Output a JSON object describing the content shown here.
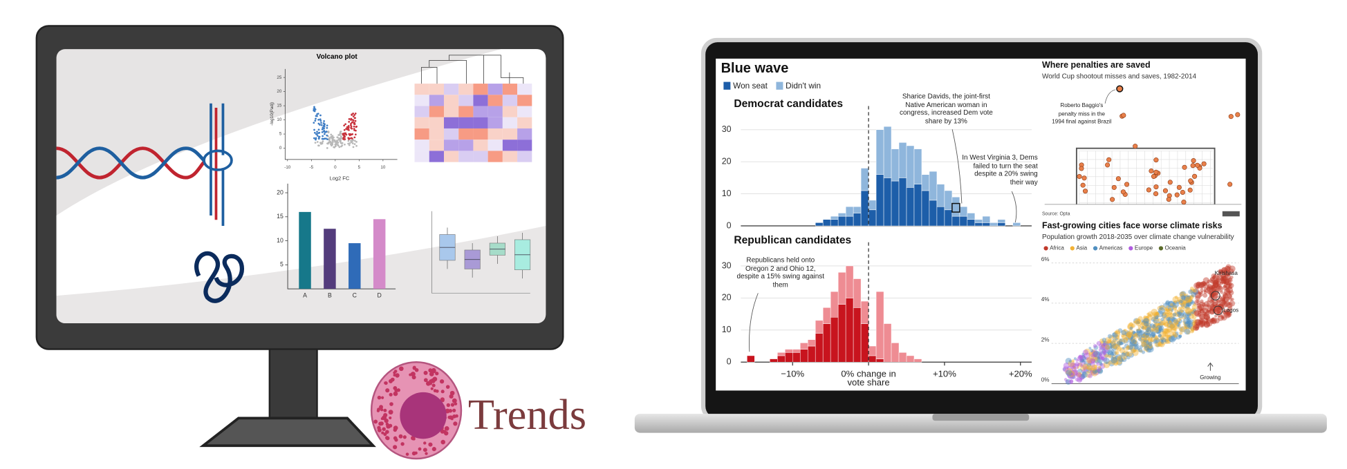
{
  "monitor": {
    "volcano": {
      "title": "Volcano plot",
      "x_label": "Log2 FC",
      "y_label": "-log10(Padj)",
      "xlim": [
        -10.5,
        13
      ],
      "xticks": [
        -10,
        -5,
        0,
        5,
        10
      ],
      "ylim": [
        -4,
        28
      ],
      "yticks": [
        0,
        5,
        10,
        15,
        20,
        25
      ]
    },
    "bar_chart": {
      "type": "bar",
      "categories": [
        "A",
        "B",
        "C",
        "D"
      ],
      "values": [
        16,
        12.5,
        9.5,
        14.5
      ],
      "colors": [
        "#16788a",
        "#533c7c",
        "#2f6bb8",
        "#d48ac9"
      ],
      "ylim": [
        0,
        21
      ],
      "yticks": [
        5,
        10,
        15,
        20
      ]
    }
  },
  "logo": {
    "text": "Trends"
  },
  "laptop": {
    "blue_wave": {
      "title": "Blue wave",
      "legend": [
        {
          "name": "Won seat",
          "color": "#1d5ea9"
        },
        {
          "name": "Didn't win",
          "color": "#8fb6dc"
        }
      ],
      "xlim": [
        -20,
        22
      ],
      "xticks": [
        {
          "value": -10,
          "label": "−10%"
        },
        {
          "value": 0,
          "label": "0% change in vote share"
        },
        {
          "value": 10,
          "label": "+10%"
        },
        {
          "value": 20,
          "label": "+20%"
        }
      ],
      "panels": [
        {
          "title": "Democrat candidates",
          "ylim": [
            0,
            32
          ],
          "yticks": [
            0,
            10,
            20,
            30
          ],
          "bins": [
            -7,
            -6,
            -5,
            -4,
            -3,
            -2,
            -1,
            0,
            1,
            2,
            3,
            4,
            5,
            6,
            7,
            8,
            9,
            10,
            11,
            12,
            13,
            14,
            15,
            16,
            17,
            18,
            19,
            20
          ],
          "series": [
            {
              "name": "Won seat",
              "color": "#1d5ea9",
              "values": [
                1,
                2,
                2,
                3,
                3,
                4,
                11,
                5,
                16,
                15,
                14,
                15,
                12,
                13,
                11,
                8,
                6,
                5,
                3,
                3,
                2,
                1,
                1,
                0,
                1,
                0,
                0
              ]
            },
            {
              "name": "Didn't win",
              "color": "#8fb6dc",
              "values": [
                0,
                0,
                1,
                1,
                3,
                2,
                7,
                3,
                14,
                16,
                10,
                11,
                13,
                11,
                5,
                9,
                7,
                6,
                6,
                3,
                2,
                1,
                2,
                1,
                1,
                0,
                1
              ]
            }
          ],
          "annotations": [
            "Sharice Davids, the joint-first Native American woman in congress, increased Dem vote share by 13%",
            "In West Virginia 3, Dems failed to turn the seat despite a 20% swing their way"
          ]
        },
        {
          "title": "Republican candidates",
          "ylim": [
            0,
            32
          ],
          "yticks": [
            0,
            10,
            20,
            30
          ],
          "bins": [
            -16,
            -15,
            -14,
            -13,
            -12,
            -11,
            -10,
            -9,
            -8,
            -7,
            -6,
            -5,
            -4,
            -3,
            -2,
            -1,
            0,
            1,
            2,
            3,
            4,
            5,
            6,
            7
          ],
          "series": [
            {
              "name": "Won seat",
              "color": "#c8141e",
              "values": [
                2,
                0,
                0,
                1,
                2,
                3,
                3,
                4,
                5,
                9,
                12,
                14,
                18,
                20,
                17,
                12,
                2,
                1,
                0,
                0,
                0,
                0,
                0
              ]
            },
            {
              "name": "Didn't win",
              "color": "#ee8c93",
              "values": [
                0,
                0,
                0,
                0,
                1,
                1,
                1,
                2,
                2,
                4,
                5,
                8,
                10,
                10,
                9,
                7,
                3,
                21,
                12,
                6,
                3,
                2,
                1
              ]
            }
          ],
          "annotations": [
            "Republicans held onto Oregon 2 and Ohio 12, despite a 15% swing against them"
          ]
        }
      ]
    },
    "penalties": {
      "title": "Where penalties are saved",
      "subtitle": "World Cup shootout misses and saves, 1982-2014",
      "annotation": "Roberto Baggio's penalty miss in the 1994 final against Brazil",
      "source": "Source: Opta"
    },
    "cities": {
      "title": "Fast-growing cities face worse climate risks",
      "subtitle": "Population growth 2018-2035 over climate change vulnerability",
      "legend": [
        {
          "name": "Africa",
          "color": "#c0392b"
        },
        {
          "name": "Asia",
          "color": "#f2b134"
        },
        {
          "name": "Americas",
          "color": "#4f8fc0"
        },
        {
          "name": "Europe",
          "color": "#b05ce0"
        },
        {
          "name": "Oceania",
          "color": "#5b6b2a"
        }
      ],
      "ylim": [
        0,
        6.3
      ],
      "yticks": [
        {
          "value": 0,
          "label": "0%"
        },
        {
          "value": 2,
          "label": "2%"
        },
        {
          "value": 4,
          "label": "4%"
        },
        {
          "value": 6,
          "label": "6%"
        }
      ],
      "annotations": [
        "Kirishasa",
        "Lagos",
        "Growing"
      ]
    }
  }
}
